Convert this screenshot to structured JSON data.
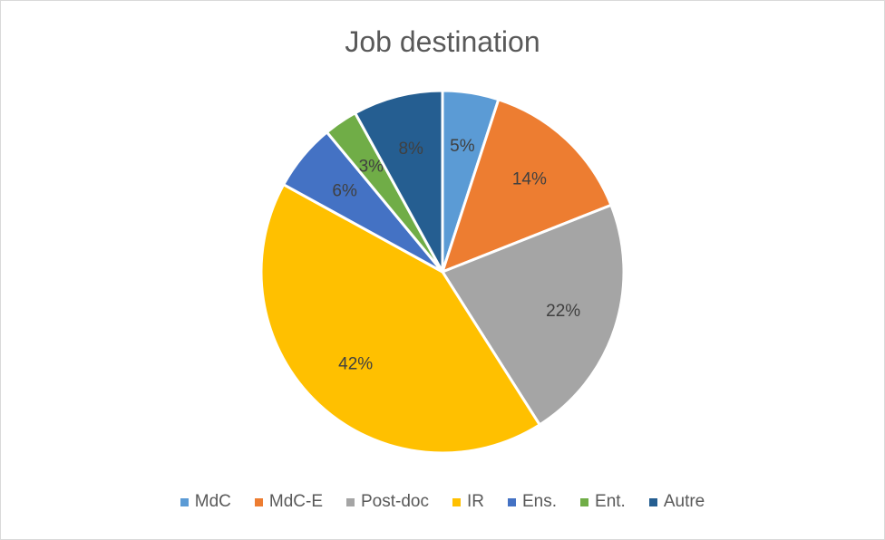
{
  "chart_data": {
    "type": "pie",
    "title": "Job destination",
    "legend_position": "bottom",
    "slices": [
      {
        "label": "MdC",
        "value": 5,
        "display": "5%",
        "color": "#5b9bd5"
      },
      {
        "label": "MdC-E",
        "value": 14,
        "display": "14%",
        "color": "#ed7d31"
      },
      {
        "label": "Post-doc",
        "value": 22,
        "display": "22%",
        "color": "#a5a5a5"
      },
      {
        "label": "IR",
        "value": 42,
        "display": "42%",
        "color": "#ffc000"
      },
      {
        "label": "Ens.",
        "value": 6,
        "display": "6%",
        "color": "#4472c4"
      },
      {
        "label": "Ent.",
        "value": 3,
        "display": "3%",
        "color": "#70ad47"
      },
      {
        "label": "Autre",
        "value": 8,
        "display": "8%",
        "color": "#255e91"
      }
    ]
  }
}
